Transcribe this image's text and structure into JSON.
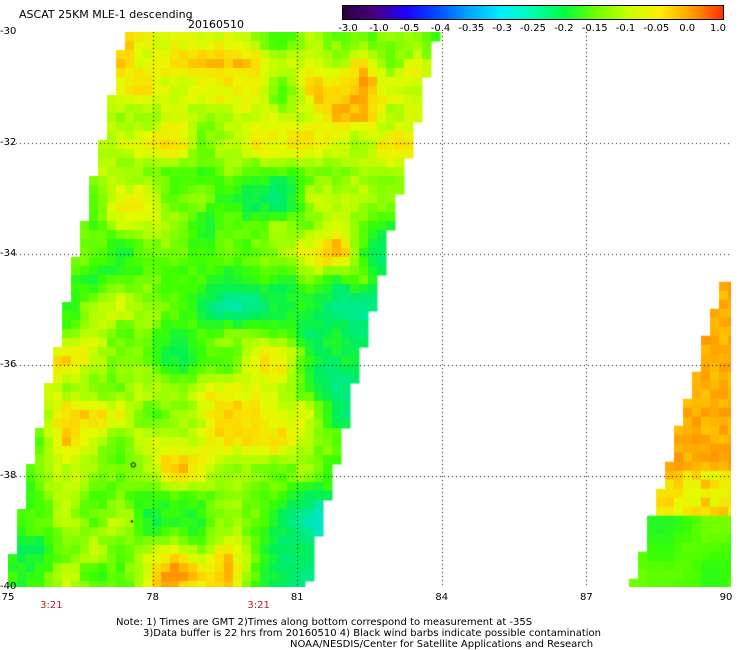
{
  "header": {
    "title": "ASCAT 25KM MLE-1 descending",
    "date": "20160510"
  },
  "colorbar": {
    "labels": [
      "-3.0",
      "-1.0",
      "-0.5",
      "-0.4",
      "-0.35",
      "-0.3",
      "-0.25",
      "-0.2",
      "-0.15",
      "-0.1",
      "-0.05",
      "0.0",
      "1.0"
    ],
    "colors": [
      "#2a0040",
      "#4b0082",
      "#1e00ff",
      "#0050ff",
      "#00aaff",
      "#00f0ff",
      "#00ffb0",
      "#00ff40",
      "#70ff00",
      "#c8ff00",
      "#fff000",
      "#ffa000",
      "#ff3000"
    ]
  },
  "axes": {
    "lat_labels": [
      "-30",
      "-32",
      "-34",
      "-36",
      "-38",
      "-40"
    ],
    "lon_labels": [
      "75",
      "78",
      "81",
      "84",
      "87",
      "90"
    ],
    "lat_range": [
      -40,
      -30
    ],
    "lon_range": [
      75,
      90
    ],
    "time_labels": [
      {
        "text": "3:21",
        "lon": 75.9
      },
      {
        "text": "3:21",
        "lon": 80.2
      }
    ]
  },
  "notes": {
    "line1": "Note: 1) Times are GMT 2)Times along bottom correspond to measurement at -35S",
    "line2": "3)Data buffer is 22 hrs from 20160510 4) Black wind barbs indicate possible contamination",
    "line3": "NOAA/NESDIS/Center for Satellite Applications and Research"
  },
  "swaths": {
    "left": {
      "top_lon": [
        77.5,
        83.8
      ],
      "bottom_lon": [
        75.0,
        81.1
      ],
      "lat": [
        -30,
        -40
      ]
    },
    "right": {
      "top_lon": [
        89.9,
        90.0
      ],
      "bottom_lon": [
        88.0,
        90.0
      ],
      "lat": [
        -34.5,
        -40
      ]
    }
  }
}
